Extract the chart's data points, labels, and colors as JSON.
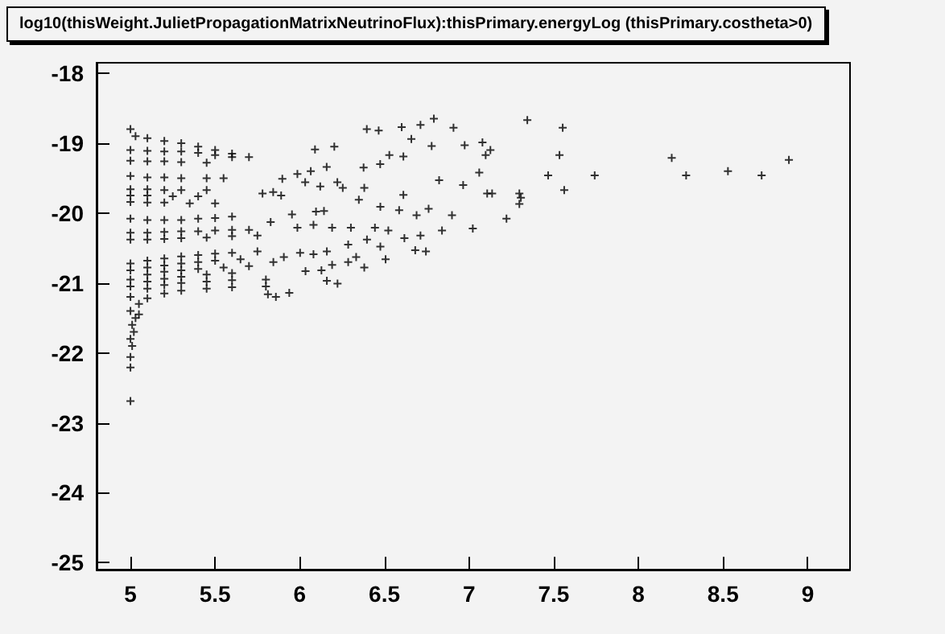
{
  "chart_data": {
    "type": "scatter",
    "title": "log10(thisWeight.JulietPropagationMatrixNeutrinoFlux):thisPrimary.energyLog (thisPrimary.costheta>0)",
    "xlim": [
      4.8,
      9.25
    ],
    "ylim": [
      -25.1,
      -17.85
    ],
    "xticks": [
      5,
      5.5,
      6,
      6.5,
      7,
      7.5,
      8,
      8.5,
      9
    ],
    "yticks": [
      -25,
      -24,
      -23,
      -22,
      -21,
      -20,
      -19,
      -18
    ],
    "grid": false,
    "marker": "cross",
    "series": [
      {
        "color": "#000000",
        "x": [
          5.0,
          5.03,
          5.1,
          5.2,
          5.3,
          5.4,
          5.5,
          5.6,
          5.7,
          5.0,
          5.1,
          5.2,
          5.3,
          5.4,
          5.5,
          5.6,
          5.0,
          5.1,
          5.2,
          5.3,
          5.45,
          5.0,
          5.1,
          5.2,
          5.3,
          5.45,
          5.55,
          5.0,
          5.1,
          5.2,
          5.3,
          5.45,
          5.0,
          5.1,
          5.25,
          5.4,
          5.0,
          5.1,
          5.2,
          5.35,
          5.5,
          5.0,
          5.1,
          5.2,
          5.3,
          5.4,
          5.5,
          5.6,
          5.0,
          5.1,
          5.2,
          5.3,
          5.4,
          5.5,
          5.6,
          5.7,
          5.0,
          5.1,
          5.2,
          5.3,
          5.45,
          5.6,
          5.75,
          5.0,
          5.1,
          5.2,
          5.3,
          5.4,
          5.5,
          5.6,
          5.75,
          5.0,
          5.1,
          5.2,
          5.3,
          5.4,
          5.5,
          5.65,
          5.0,
          5.1,
          5.2,
          5.3,
          5.4,
          5.55,
          5.7,
          5.0,
          5.1,
          5.2,
          5.3,
          5.45,
          5.6,
          5.0,
          5.1,
          5.2,
          5.3,
          5.45,
          5.6,
          5.8,
          5.0,
          5.05,
          5.1,
          5.2,
          5.3,
          5.45,
          5.6,
          5.8,
          5.01,
          5.02,
          5.0,
          5.01,
          5.0,
          5.0,
          5.0,
          5.03,
          5.05,
          6.908,
          6.974,
          7.079,
          7.126,
          7.098,
          7.344,
          7.553,
          7.534,
          7.06,
          6.965,
          7.107,
          7.136,
          7.297,
          7.306,
          7.297,
          7.467,
          7.562,
          7.742,
          6.899,
          7.022,
          7.221,
          8.197,
          8.282,
          8.529,
          8.728,
          8.889,
          6.396,
          6.466,
          6.602,
          6.713,
          6.792,
          6.659,
          6.779,
          6.09,
          6.204,
          6.529,
          6.612,
          6.475,
          6.377,
          6.159,
          6.065,
          5.986,
          5.897,
          6.823,
          6.222,
          6.254,
          6.121,
          6.032,
          5.78,
          5.843,
          5.89,
          6.381,
          6.349,
          6.612,
          6.476,
          6.587,
          6.761,
          6.69,
          6.096,
          6.143,
          5.954,
          5.828,
          5.986,
          6.081,
          6.191,
          6.302,
          6.444,
          6.523,
          6.397,
          6.618,
          6.713,
          6.84,
          6.286,
          6.476,
          6.682,
          6.745,
          6.333,
          6.507,
          6.16,
          6.081,
          6.002,
          5.906,
          5.844,
          6.191,
          6.286,
          6.381,
          6.128,
          6.034,
          6.16,
          6.223,
          5.938,
          5.859,
          5.812
        ],
        "values": [
          -18.8,
          -18.9,
          -18.93,
          -18.97,
          -19.0,
          -19.05,
          -19.1,
          -19.15,
          -19.2,
          -19.1,
          -19.11,
          -19.12,
          -19.12,
          -19.14,
          -19.17,
          -19.2,
          -19.25,
          -19.26,
          -19.26,
          -19.27,
          -19.28,
          -19.47,
          -19.49,
          -19.49,
          -19.5,
          -19.5,
          -19.5,
          -19.66,
          -19.66,
          -19.67,
          -19.67,
          -19.67,
          -19.75,
          -19.75,
          -19.76,
          -19.76,
          -19.84,
          -19.85,
          -19.85,
          -19.86,
          -19.86,
          -20.08,
          -20.1,
          -20.1,
          -20.1,
          -20.08,
          -20.07,
          -20.05,
          -20.28,
          -20.28,
          -20.27,
          -20.26,
          -20.26,
          -20.25,
          -20.24,
          -20.24,
          -20.38,
          -20.38,
          -20.37,
          -20.36,
          -20.35,
          -20.33,
          -20.32,
          -20.72,
          -20.68,
          -20.65,
          -20.62,
          -20.6,
          -20.58,
          -20.57,
          -20.55,
          -20.82,
          -20.78,
          -20.75,
          -20.72,
          -20.7,
          -20.68,
          -20.66,
          -20.95,
          -20.88,
          -20.84,
          -20.82,
          -20.8,
          -20.78,
          -20.76,
          -21.05,
          -20.98,
          -20.94,
          -20.91,
          -20.88,
          -20.86,
          -21.2,
          -21.08,
          -21.03,
          -21.0,
          -20.98,
          -20.96,
          -20.95,
          -21.4,
          -21.3,
          -21.22,
          -21.15,
          -21.11,
          -21.08,
          -21.06,
          -21.05,
          -21.6,
          -21.7,
          -21.8,
          -21.9,
          -22.06,
          -22.21,
          -22.69,
          -21.5,
          -21.45,
          -18.78,
          -19.03,
          -18.99,
          -19.1,
          -19.17,
          -18.67,
          -18.78,
          -19.17,
          -19.42,
          -19.6,
          -19.72,
          -19.72,
          -19.72,
          -19.78,
          -19.87,
          -19.46,
          -19.67,
          -19.46,
          -20.03,
          -20.22,
          -20.08,
          -19.21,
          -19.46,
          -19.4,
          -19.46,
          -19.24,
          -18.8,
          -18.82,
          -18.77,
          -18.74,
          -18.65,
          -18.94,
          -19.04,
          -19.09,
          -19.05,
          -19.17,
          -19.19,
          -19.3,
          -19.35,
          -19.34,
          -19.4,
          -19.44,
          -19.51,
          -19.53,
          -19.56,
          -19.64,
          -19.62,
          -19.56,
          -19.72,
          -19.7,
          -19.75,
          -19.64,
          -19.81,
          -19.74,
          -19.91,
          -19.96,
          -19.94,
          -20.03,
          -19.98,
          -19.97,
          -20.02,
          -20.13,
          -20.21,
          -20.17,
          -20.21,
          -20.21,
          -20.21,
          -20.25,
          -20.38,
          -20.36,
          -20.32,
          -20.25,
          -20.45,
          -20.48,
          -20.53,
          -20.55,
          -20.63,
          -20.66,
          -20.55,
          -20.59,
          -20.57,
          -20.63,
          -20.7,
          -20.74,
          -20.7,
          -20.78,
          -20.82,
          -20.83,
          -20.97,
          -21.01,
          -21.14,
          -21.2,
          -21.16
        ]
      }
    ]
  }
}
